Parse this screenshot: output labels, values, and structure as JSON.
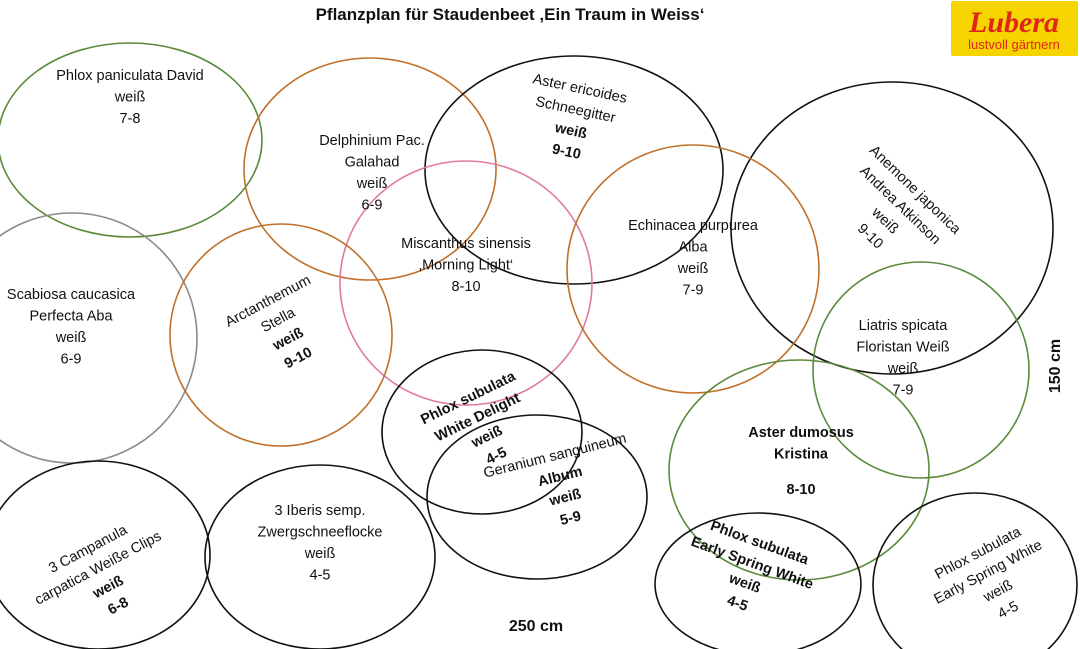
{
  "title": "Pflanzplan für Staudenbeet ‚Ein Traum in Weiss‘",
  "logo": {
    "brand": "Lubera",
    "tagline": "lustvoll gärtnern",
    "bg_color": "#f5d400",
    "text_color": "#e0261b"
  },
  "dimensions": {
    "width_label": "250 cm",
    "height_label": "150 cm"
  },
  "colors": {
    "green": "#5a8a3a",
    "brown": "#c0702a",
    "black": "#111111",
    "gray": "#8a8a8a",
    "pink": "#e07aa0"
  },
  "plants": [
    {
      "lines": [
        "Phlox paniculata David",
        "weiß",
        "7-8"
      ],
      "color": "#5a8a3a"
    },
    {
      "lines": [
        "Delphinium Pac.",
        "Galahad",
        "weiß",
        "6-9"
      ],
      "color": "#c0702a"
    },
    {
      "lines": [
        "Aster ericoides",
        "Schneegitter",
        "weiß",
        "9-10"
      ],
      "color": "#111111"
    },
    {
      "lines": [
        "Anemone japonica",
        "Andrea Atkinson",
        "weiß",
        "9-10"
      ],
      "color": "#111111"
    },
    {
      "lines": [
        "Miscanthus sinensis",
        "‚Morning Light‘",
        "8-10"
      ],
      "color": "#e07aa0"
    },
    {
      "lines": [
        "Echinacea purpurea",
        "Alba",
        "weiß",
        "7-9"
      ],
      "color": "#c0702a"
    },
    {
      "lines": [
        "Scabiosa caucasica",
        "Perfecta Aba",
        "weiß",
        "6-9"
      ],
      "color": "#8a8a8a"
    },
    {
      "lines": [
        "Arctanthemum",
        "Stella",
        "weiß",
        "9-10"
      ],
      "color": "#c0702a"
    },
    {
      "lines": [
        "Liatris spicata",
        "Floristan Weiß",
        "weiß",
        "7-9"
      ],
      "color": "#5a8a3a"
    },
    {
      "lines": [
        "Phlox subulata",
        "White Delight",
        "weiß",
        "4-5"
      ],
      "color": "#111111"
    },
    {
      "lines": [
        "Geranium sanguineum",
        "Album",
        "weiß",
        "5-9"
      ],
      "color": "#111111"
    },
    {
      "lines": [
        "Aster dumosus",
        "Kristina",
        "8-10"
      ],
      "color": "#5a8a3a"
    },
    {
      "lines": [
        "3 Campanula",
        "carpatica Weiße Clips",
        "weiß",
        "6-8"
      ],
      "color": "#111111"
    },
    {
      "lines": [
        "3 Iberis semp.",
        "Zwergschneeflocke",
        "weiß",
        "4-5"
      ],
      "color": "#111111"
    },
    {
      "lines": [
        "Phlox subulata",
        "Early Spring White",
        "weiß",
        "4-5"
      ],
      "color": "#111111"
    },
    {
      "lines": [
        "Phlox subulata",
        "Early Spring White",
        "weiß",
        "4-5"
      ],
      "color": "#111111"
    }
  ]
}
